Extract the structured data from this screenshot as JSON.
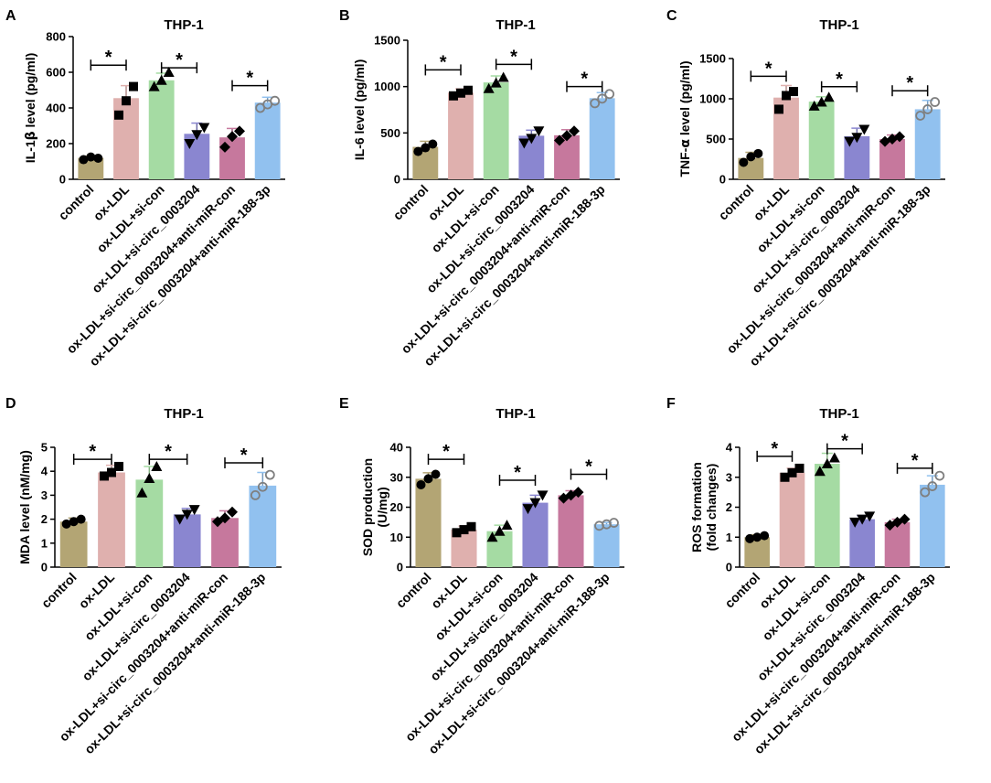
{
  "categories": [
    "control",
    "ox-LDL",
    "ox-LDL+si-con",
    "ox-LDL+si-circ_0003204",
    "ox-LDL+si-circ_0003204+anti-miR-con",
    "ox-LDL+si-circ_0003204+anti-miR-188-3p"
  ],
  "colors": {
    "bars": [
      "#b3a574",
      "#dfb0ae",
      "#a5dba3",
      "#8a86d0",
      "#c6789d",
      "#91c1ef"
    ],
    "markers": "#000000",
    "open_marker": "#7f7f7f",
    "axis": "#000000"
  },
  "marker_shapes": [
    "circle",
    "square",
    "triangle",
    "triangle-down",
    "diamond",
    "open-circle"
  ],
  "chart_data": [
    {
      "id": "A",
      "type": "bar",
      "title": "THP-1",
      "ylabel_main": "IL-1",
      "ylabel_greek": "β",
      "ylabel_rest": " level (pg/ml)",
      "ylim": [
        0,
        800
      ],
      "yticks": [
        0,
        200,
        400,
        600,
        800
      ],
      "values": [
        120,
        455,
        555,
        255,
        235,
        430
      ],
      "errors": [
        10,
        70,
        40,
        60,
        50,
        30
      ],
      "points": [
        [
          110,
          125,
          118
        ],
        [
          360,
          440,
          520
        ],
        [
          520,
          555,
          600
        ],
        [
          200,
          250,
          290
        ],
        [
          180,
          240,
          270
        ],
        [
          400,
          420,
          440
        ]
      ],
      "significance": [
        {
          "from": 1,
          "to": 1.0,
          "label": "*"
        }
      ],
      "brackets": [
        {
          "left": 0,
          "right": 1,
          "y": 640,
          "label": "*"
        },
        {
          "left": 2,
          "right": 3,
          "y": 625,
          "label": "*"
        },
        {
          "left": 4,
          "right": 5,
          "y": 525,
          "label": "*"
        }
      ]
    },
    {
      "id": "B",
      "type": "bar",
      "title": "THP-1",
      "ylabel_main": "IL-6 level (pg/ml)",
      "ylabel_greek": "",
      "ylabel_rest": "",
      "ylim": [
        0,
        1500
      ],
      "yticks": [
        0,
        500,
        1000,
        1500
      ],
      "values": [
        350,
        935,
        1045,
        470,
        475,
        875
      ],
      "errors": [
        60,
        40,
        70,
        60,
        60,
        60
      ],
      "points": [
        [
          300,
          340,
          380
        ],
        [
          900,
          930,
          960
        ],
        [
          980,
          1040,
          1100
        ],
        [
          390,
          440,
          520
        ],
        [
          420,
          470,
          520
        ],
        [
          820,
          870,
          920
        ]
      ],
      "brackets": [
        {
          "left": 0,
          "right": 1,
          "y": 1180,
          "label": "*"
        },
        {
          "left": 2,
          "right": 3,
          "y": 1240,
          "label": "*"
        },
        {
          "left": 4,
          "right": 5,
          "y": 1000,
          "label": "*"
        }
      ]
    },
    {
      "id": "C",
      "type": "bar",
      "title": "THP-1",
      "ylabel_main": "TNF-",
      "ylabel_greek": "α",
      "ylabel_rest": " level (pg/ml)",
      "ylim": [
        0,
        1500
      ],
      "yticks": [
        0,
        500,
        1000,
        1500
      ],
      "values": [
        265,
        1015,
        965,
        535,
        500,
        870
      ],
      "errors": [
        70,
        150,
        60,
        100,
        50,
        110
      ],
      "points": [
        [
          210,
          280,
          320
        ],
        [
          870,
          1040,
          1090
        ],
        [
          910,
          960,
          1020
        ],
        [
          470,
          520,
          620
        ],
        [
          470,
          500,
          530
        ],
        [
          790,
          870,
          960
        ]
      ],
      "brackets": [
        {
          "left": 0,
          "right": 1,
          "y": 1280,
          "label": "*"
        },
        {
          "left": 2,
          "right": 3,
          "y": 1150,
          "label": "*"
        },
        {
          "left": 4,
          "right": 5,
          "y": 1100,
          "label": "*"
        }
      ]
    },
    {
      "id": "D",
      "type": "bar",
      "title": "THP-1",
      "ylabel_main": "MDA level (nM/mg)",
      "ylabel_greek": "",
      "ylabel_rest": "",
      "ylim": [
        0,
        5
      ],
      "yticks": [
        0,
        1,
        2,
        3,
        4,
        5
      ],
      "values": [
        1.9,
        3.95,
        3.65,
        2.2,
        2.05,
        3.4
      ],
      "errors": [
        0.15,
        0.3,
        0.55,
        0.25,
        0.3,
        0.55
      ],
      "points": [
        [
          1.8,
          1.9,
          2.0
        ],
        [
          3.8,
          3.95,
          4.2
        ],
        [
          3.1,
          3.7,
          4.2
        ],
        [
          2.0,
          2.2,
          2.4
        ],
        [
          1.9,
          2.05,
          2.3
        ],
        [
          3.0,
          3.35,
          3.85
        ]
      ],
      "brackets": [
        {
          "left": 0,
          "right": 1,
          "y": 4.5,
          "label": "*"
        },
        {
          "left": 2,
          "right": 3,
          "y": 4.5,
          "label": "*"
        },
        {
          "left": 4,
          "right": 5,
          "y": 4.35,
          "label": "*"
        }
      ]
    },
    {
      "id": "E",
      "type": "bar",
      "title": "THP-1",
      "ylabel_main": "SOD production",
      "ylabel_main2": "(U/mg)",
      "ylabel_greek": "",
      "ylabel_rest": "",
      "ylim": [
        0,
        40
      ],
      "yticks": [
        0,
        10,
        20,
        30,
        40
      ],
      "values": [
        29.5,
        12.5,
        12,
        21.5,
        24,
        14.3
      ],
      "errors": [
        2,
        1.2,
        2,
        2.5,
        1.5,
        0.6
      ],
      "points": [
        [
          27.5,
          29.5,
          31
        ],
        [
          11.5,
          12.5,
          13.5
        ],
        [
          10,
          12,
          14
        ],
        [
          19.5,
          21.5,
          24
        ],
        [
          23,
          24,
          25
        ],
        [
          13.8,
          14.3,
          14.8
        ]
      ],
      "brackets": [
        {
          "left": 0,
          "right": 1,
          "y": 36,
          "label": "*"
        },
        {
          "left": 3,
          "right": 3.55,
          "y": 30,
          "label": "*",
          "skip": true
        },
        {
          "left": 2,
          "right": 3,
          "y": 29,
          "label": "*"
        },
        {
          "left": 4,
          "right": 5,
          "y": 31,
          "label": "*"
        }
      ]
    },
    {
      "id": "F",
      "type": "bar",
      "title": "THP-1",
      "ylabel_main": "ROS formation",
      "ylabel_main2": "(fold changes)",
      "ylabel_greek": "",
      "ylabel_rest": "",
      "ylim": [
        0,
        4
      ],
      "yticks": [
        0,
        1,
        2,
        3,
        4
      ],
      "values": [
        1.0,
        3.15,
        3.45,
        1.6,
        1.5,
        2.75
      ],
      "errors": [
        0.08,
        0.15,
        0.35,
        0.12,
        0.1,
        0.3
      ],
      "points": [
        [
          0.95,
          1.0,
          1.05
        ],
        [
          3.0,
          3.15,
          3.3
        ],
        [
          3.2,
          3.45,
          3.65
        ],
        [
          1.5,
          1.6,
          1.7
        ],
        [
          1.4,
          1.5,
          1.6
        ],
        [
          2.5,
          2.7,
          3.05
        ]
      ],
      "brackets": [
        {
          "left": 0,
          "right": 1,
          "y": 3.7,
          "label": "*"
        },
        {
          "left": 2,
          "right": 3,
          "y": 3.95,
          "label": "*"
        },
        {
          "left": 4,
          "right": 5,
          "y": 3.3,
          "label": "*"
        }
      ]
    }
  ]
}
